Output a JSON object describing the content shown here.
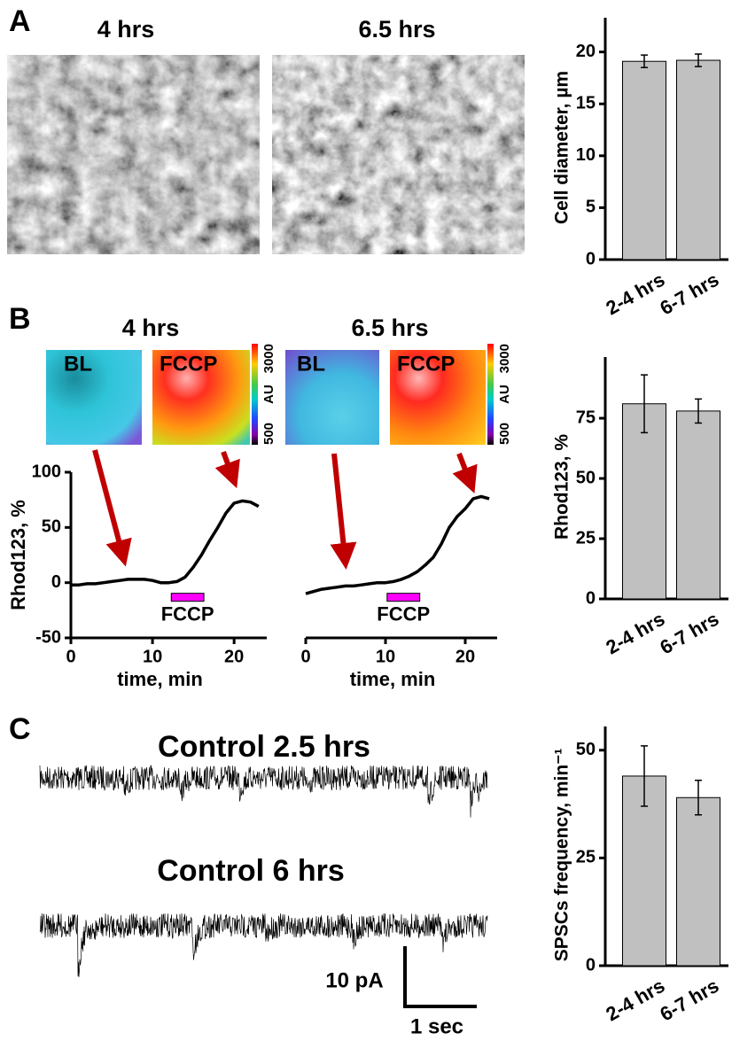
{
  "figure": {
    "panel_labels": [
      "A",
      "B",
      "C"
    ],
    "A": {
      "titles": [
        "4 hrs",
        "6.5 hrs"
      ]
    },
    "B": {
      "images": [
        {
          "labels": [
            "BL",
            "FCCP"
          ],
          "colorbar": {
            "max": "3000",
            "unit": "AU",
            "min": "500"
          }
        },
        {
          "labels": [
            "BL",
            "FCCP"
          ],
          "colorbar": {
            "max": "3000",
            "unit": "AU",
            "min": "500"
          }
        }
      ]
    },
    "C": {
      "traces": [
        "Control 2.5 hrs",
        "Control 6 hrs"
      ],
      "scalebar": {
        "y": "10 pA",
        "x": "1 sec"
      }
    }
  },
  "chart_data": [
    {
      "type": "bar",
      "ylabel": "Cell diameter, µm",
      "categories": [
        "2-4 hrs",
        "6-7 hrs"
      ],
      "values": [
        19.1,
        19.2
      ],
      "errors": [
        0.6,
        0.6
      ],
      "color": "#c0c0c0",
      "ylim": [
        0,
        23.3
      ],
      "yticks": [
        0,
        5,
        10,
        15,
        20
      ]
    },
    {
      "type": "line",
      "title": "4 hrs",
      "xlabel": "time, min",
      "ylabel": "Rhod123, %",
      "x": [
        0,
        1,
        2,
        3,
        4,
        5,
        6,
        7,
        8,
        9,
        10,
        11,
        12,
        13,
        14,
        15,
        16,
        17,
        18,
        19,
        20,
        21,
        22,
        23
      ],
      "values": [
        -2,
        -2,
        -1,
        -1,
        0,
        1,
        2,
        3,
        3,
        3,
        2,
        0,
        0,
        1,
        5,
        14,
        25,
        38,
        50,
        63,
        72,
        74,
        73,
        69
      ],
      "color": "#000000",
      "xlim": [
        0,
        24
      ],
      "xticks": [
        0,
        10,
        20
      ],
      "ylim": [
        -50,
        100
      ],
      "yticks": [
        -50,
        0,
        50,
        100
      ],
      "annotation": "FCCP",
      "highlight": [
        12.3,
        16.3
      ],
      "highlight_color": "#ff00ff"
    },
    {
      "type": "line",
      "title": "6.5 hrs",
      "xlabel": "time, min",
      "x": [
        0,
        1,
        2,
        3,
        4,
        5,
        6,
        7,
        8,
        9,
        10,
        11,
        12,
        13,
        14,
        15,
        16,
        17,
        18,
        19,
        20,
        21,
        22,
        23
      ],
      "values": [
        -10,
        -8,
        -6,
        -5,
        -4,
        -3,
        -3,
        -2,
        -1,
        0,
        0,
        1,
        3,
        6,
        10,
        16,
        23,
        35,
        50,
        60,
        67,
        76,
        78,
        76
      ],
      "color": "#000000",
      "xlim": [
        0,
        24
      ],
      "xticks": [
        0,
        10,
        20
      ],
      "ylim": [
        -50,
        100
      ],
      "annotation": "FCCP",
      "highlight": [
        10.2,
        14.3
      ],
      "highlight_color": "#ff00ff"
    },
    {
      "type": "bar",
      "ylabel": "Rhod123, %",
      "categories": [
        "2-4 hrs",
        "6-7 hrs"
      ],
      "values": [
        81,
        78
      ],
      "errors": [
        12,
        5
      ],
      "color": "#c0c0c0",
      "ylim": [
        0,
        100.4
      ],
      "yticks": [
        0,
        25,
        50,
        75
      ]
    },
    {
      "type": "bar",
      "ylabel": "SPSCs frequency, min⁻¹",
      "categories": [
        "2-4 hrs",
        "6-7 hrs"
      ],
      "values": [
        44,
        39
      ],
      "errors": [
        7,
        4
      ],
      "color": "#c0c0c0",
      "ylim": [
        0,
        55.5
      ],
      "yticks": [
        0,
        25,
        50
      ]
    }
  ]
}
